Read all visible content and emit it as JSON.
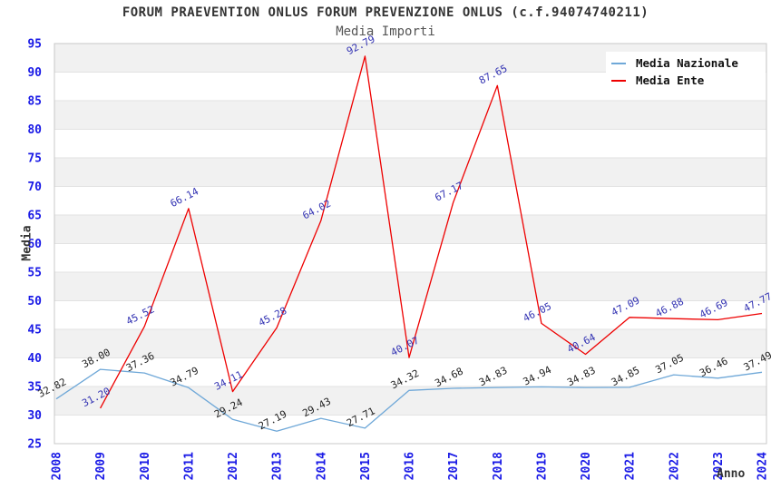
{
  "title": "FORUM PRAEVENTION ONLUS FORUM PREVENZIONE ONLUS (c.f.94074740211)",
  "subtitle": "Media Importi",
  "legend": {
    "items": [
      {
        "label": "Media Nazionale",
        "color": "#6fa8d8"
      },
      {
        "label": "Media Ente",
        "color": "#ee0000"
      }
    ]
  },
  "colors": {
    "band_gray": "#f1f1f1",
    "gridline": "#e2e2e2",
    "plot_border": "#c8c8c8",
    "tick_label_blue": "#1a1ae6",
    "title_gray": "#333333",
    "nazionale_line": "#6fa8d8",
    "ente_line": "#ee0000",
    "nazionale_value_label": "#222222",
    "ente_value_label": "#3333b3"
  },
  "chart_data": {
    "type": "line",
    "title": "FORUM PRAEVENTION ONLUS FORUM PREVENZIONE ONLUS (c.f.94074740211)",
    "subtitle": "Media Importi",
    "xlabel": "Anno",
    "ylabel": "Media",
    "ylim": [
      25,
      95
    ],
    "ytick_step": 5,
    "grid": "horizontal-bands",
    "legend_position": "top-right",
    "categories": [
      "2008",
      "2009",
      "2010",
      "2011",
      "2012",
      "2013",
      "2014",
      "2015",
      "2016",
      "2017",
      "2018",
      "2019",
      "2020",
      "2021",
      "2022",
      "2023",
      "2024"
    ],
    "series": [
      {
        "name": "Media Nazionale",
        "color": "#6fa8d8",
        "label_color": "#222222",
        "values": [
          32.82,
          38.0,
          37.36,
          34.79,
          29.24,
          27.19,
          29.43,
          27.71,
          34.32,
          34.68,
          34.83,
          34.94,
          34.83,
          34.85,
          37.05,
          36.46,
          37.49
        ]
      },
      {
        "name": "Media Ente",
        "color": "#ee0000",
        "label_color": "#3333b3",
        "values": [
          null,
          31.2,
          45.52,
          66.14,
          34.11,
          45.28,
          64.02,
          92.79,
          40.07,
          67.17,
          87.65,
          46.05,
          40.64,
          47.09,
          46.88,
          46.69,
          47.77
        ]
      }
    ]
  }
}
